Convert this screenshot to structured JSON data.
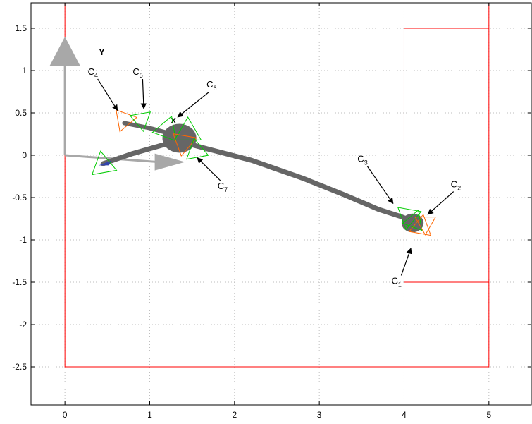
{
  "chart_data": {
    "type": "scatter",
    "xlim": [
      -0.4,
      5.5
    ],
    "ylim": [
      -2.95,
      1.8
    ],
    "xticks": [
      0,
      1,
      2,
      3,
      4,
      5
    ],
    "yticks": [
      1.5,
      1,
      0.5,
      0,
      -0.5,
      -1,
      -1.5,
      -2,
      -2.5
    ],
    "xtick_labels": [
      "0",
      "1",
      "2",
      "3",
      "4",
      "5"
    ],
    "ytick_labels": [
      "1.5",
      "1",
      "0.5",
      "0",
      "-0.5",
      "-1",
      "-1.5",
      "-2",
      "-2.5"
    ],
    "grid": true,
    "boundary_color": "#ff0000",
    "boundary_outer": [
      [
        0,
        1.8
      ],
      [
        0,
        -2.5
      ],
      [
        5,
        -2.5
      ],
      [
        5,
        1.8
      ]
    ],
    "boundary_inner": [
      [
        5,
        1.5
      ],
      [
        4,
        1.5
      ],
      [
        4,
        -1.5
      ],
      [
        5,
        -1.5
      ]
    ],
    "frame_axes": {
      "origin": [
        0,
        0
      ],
      "x_end": [
        1.35,
        -0.08
      ],
      "y_end": [
        0,
        1.4
      ],
      "color": "#a8a8a8",
      "y_label": "Y",
      "x_label": "X"
    },
    "trajectory": {
      "color": "#666666",
      "points": [
        [
          0.45,
          -0.1
        ],
        [
          0.8,
          0.02
        ],
        [
          1.15,
          0.12
        ],
        [
          1.4,
          0.15
        ],
        [
          1.7,
          0.07
        ],
        [
          2.2,
          -0.06
        ],
        [
          2.8,
          -0.27
        ],
        [
          3.3,
          -0.47
        ],
        [
          3.7,
          -0.64
        ],
        [
          3.95,
          -0.72
        ],
        [
          4.15,
          -0.8
        ]
      ],
      "branch": [
        [
          0.7,
          0.38
        ],
        [
          1.0,
          0.32
        ],
        [
          1.3,
          0.24
        ]
      ],
      "blobs": [
        {
          "x": 1.35,
          "y": 0.2,
          "r": 0.2
        },
        {
          "x": 4.1,
          "y": -0.8,
          "r": 0.13
        }
      ]
    },
    "poses": [
      {
        "x": 0.45,
        "y": -0.12,
        "angle": -20,
        "color": "#00cc00",
        "size": 0.17
      },
      {
        "x": 0.7,
        "y": 0.42,
        "angle": 10,
        "color": "#ff6600",
        "size": 0.15
      },
      {
        "x": 0.9,
        "y": 0.42,
        "angle": 40,
        "color": "#00cc00",
        "size": 0.14
      },
      {
        "x": 1.2,
        "y": 0.3,
        "angle": 70,
        "color": "#00cc00",
        "size": 0.17
      },
      {
        "x": 1.45,
        "y": 0.27,
        "angle": -30,
        "color": "#00cc00",
        "size": 0.18
      },
      {
        "x": 1.4,
        "y": 0.15,
        "angle": 20,
        "color": "#ff6600",
        "size": 0.16
      },
      {
        "x": 1.55,
        "y": 0.05,
        "angle": 100,
        "color": "#00cc00",
        "size": 0.15
      },
      {
        "x": 4.05,
        "y": -0.72,
        "angle": 20,
        "color": "#00cc00",
        "size": 0.16
      },
      {
        "x": 4.2,
        "y": -0.85,
        "angle": -40,
        "color": "#ff6600",
        "size": 0.15
      },
      {
        "x": 4.12,
        "y": -0.78,
        "angle": 70,
        "color": "#00cc00",
        "size": 0.14
      },
      {
        "x": 4.25,
        "y": -0.8,
        "angle": 150,
        "color": "#ff6600",
        "size": 0.14
      }
    ],
    "annotations": [
      {
        "label": "C",
        "sub": "1",
        "text_at": [
          3.85,
          -1.52
        ],
        "tip": [
          4.08,
          -1.1
        ]
      },
      {
        "label": "C",
        "sub": "2",
        "text_at": [
          4.55,
          -0.38
        ],
        "tip": [
          4.28,
          -0.7
        ]
      },
      {
        "label": "C",
        "sub": "3",
        "text_at": [
          3.45,
          -0.08
        ],
        "tip": [
          3.87,
          -0.57
        ]
      },
      {
        "label": "C",
        "sub": "4",
        "text_at": [
          0.27,
          0.95
        ],
        "tip": [
          0.62,
          0.53
        ]
      },
      {
        "label": "C",
        "sub": "5",
        "text_at": [
          0.8,
          0.95
        ],
        "tip": [
          0.93,
          0.55
        ]
      },
      {
        "label": "C",
        "sub": "6",
        "text_at": [
          1.67,
          0.8
        ],
        "tip": [
          1.33,
          0.45
        ]
      },
      {
        "label": "C",
        "sub": "7",
        "text_at": [
          1.8,
          -0.4
        ],
        "tip": [
          1.56,
          -0.03
        ]
      }
    ]
  }
}
